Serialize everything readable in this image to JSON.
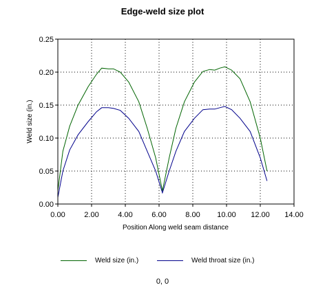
{
  "chart_data": {
    "type": "line",
    "title": "Edge-weld size plot",
    "xlabel": "Position Along weld seam distance",
    "ylabel": "Weld size (in.)",
    "xlim": [
      0,
      14
    ],
    "ylim": [
      0,
      0.25
    ],
    "x_ticks": [
      "0.00",
      "2.00",
      "4.00",
      "6.00",
      "8.00",
      "10.00",
      "12.00",
      "14.00"
    ],
    "y_ticks": [
      "0.00",
      "0.05",
      "0.10",
      "0.15",
      "0.20",
      "0.25"
    ],
    "grid": true,
    "legend_position": "bottom",
    "series": [
      {
        "name": "Weld size (in.)",
        "color": "#006400",
        "x": [
          0.0,
          0.3,
          0.7,
          1.2,
          1.8,
          2.3,
          2.6,
          3.0,
          3.3,
          3.7,
          4.2,
          4.8,
          5.3,
          5.8,
          6.2,
          6.6,
          7.0,
          7.5,
          8.1,
          8.6,
          9.0,
          9.3,
          9.6,
          9.9,
          10.3,
          10.8,
          11.4,
          12.0,
          12.4
        ],
        "y": [
          0.02,
          0.08,
          0.118,
          0.15,
          0.178,
          0.197,
          0.206,
          0.205,
          0.205,
          0.2,
          0.185,
          0.155,
          0.115,
          0.07,
          0.02,
          0.07,
          0.115,
          0.155,
          0.185,
          0.201,
          0.204,
          0.203,
          0.206,
          0.208,
          0.203,
          0.19,
          0.155,
          0.1,
          0.05
        ]
      },
      {
        "name": "Weld throat size (in.)",
        "color": "#00008b",
        "x": [
          0.0,
          0.3,
          0.7,
          1.2,
          1.8,
          2.3,
          2.6,
          3.0,
          3.3,
          3.7,
          4.2,
          4.8,
          5.3,
          5.8,
          6.2,
          6.6,
          7.0,
          7.5,
          8.1,
          8.6,
          9.0,
          9.3,
          9.6,
          9.9,
          10.3,
          10.8,
          11.4,
          12.0,
          12.4
        ],
        "y": [
          0.01,
          0.05,
          0.082,
          0.105,
          0.125,
          0.14,
          0.146,
          0.146,
          0.145,
          0.142,
          0.13,
          0.11,
          0.08,
          0.05,
          0.017,
          0.05,
          0.08,
          0.11,
          0.13,
          0.143,
          0.144,
          0.144,
          0.146,
          0.148,
          0.143,
          0.13,
          0.11,
          0.07,
          0.035
        ]
      }
    ]
  },
  "status": {
    "coordinates": "0, 0"
  }
}
